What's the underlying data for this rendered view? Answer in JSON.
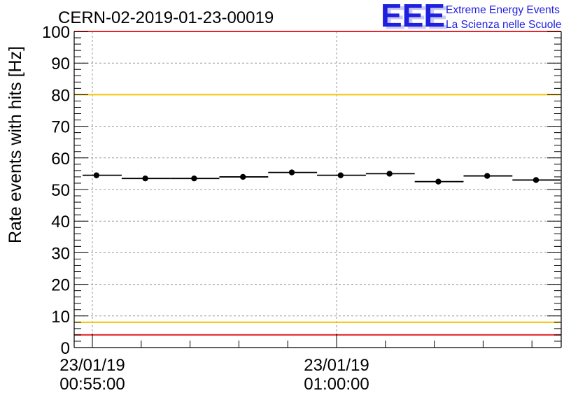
{
  "chart_data": {
    "type": "scatter",
    "title": "CERN-02-2019-01-23-00019",
    "xlabel": "",
    "ylabel": "Rate events with hits [Hz]",
    "ylim": [
      0,
      100
    ],
    "yticks": [
      0,
      10,
      20,
      30,
      40,
      50,
      60,
      70,
      80,
      90,
      100
    ],
    "xlim_seconds_from_first_tick": [
      0,
      575
    ],
    "xticks": [
      {
        "date": "23/01/19",
        "time": "00:55:00",
        "t": 0
      },
      {
        "date": "23/01/19",
        "time": "01:00:00",
        "t": 300
      }
    ],
    "grid": true,
    "reference_lines": [
      {
        "value": 100,
        "color": "#e8242a"
      },
      {
        "value": 80,
        "color": "#f5c400"
      },
      {
        "value": 8,
        "color": "#f5c400"
      },
      {
        "value": 4,
        "color": "#e8242a"
      }
    ],
    "points": [
      {
        "t": 5,
        "y": 54.5,
        "t_from": -12,
        "t_to": 36
      },
      {
        "t": 65,
        "y": 53.5,
        "t_from": 36,
        "t_to": 96
      },
      {
        "t": 125,
        "y": 53.5,
        "t_from": 96,
        "t_to": 156
      },
      {
        "t": 185,
        "y": 54.0,
        "t_from": 156,
        "t_to": 216
      },
      {
        "t": 245,
        "y": 55.4,
        "t_from": 216,
        "t_to": 276
      },
      {
        "t": 305,
        "y": 54.5,
        "t_from": 276,
        "t_to": 336
      },
      {
        "t": 365,
        "y": 55.0,
        "t_from": 336,
        "t_to": 396
      },
      {
        "t": 425,
        "y": 52.5,
        "t_from": 396,
        "t_to": 456
      },
      {
        "t": 485,
        "y": 54.3,
        "t_from": 456,
        "t_to": 516
      },
      {
        "t": 545,
        "y": 53.0,
        "t_from": 516,
        "t_to": 575
      }
    ],
    "marker_color": "#000000",
    "grid_color": "#9a9a9a"
  },
  "logo": {
    "mark": "EEE",
    "line1": "Extreme Energy Events",
    "line2": "La Scienza nelle Scuole",
    "color": "#1f1fe0",
    "shadow_color": "#c9c9f2"
  }
}
